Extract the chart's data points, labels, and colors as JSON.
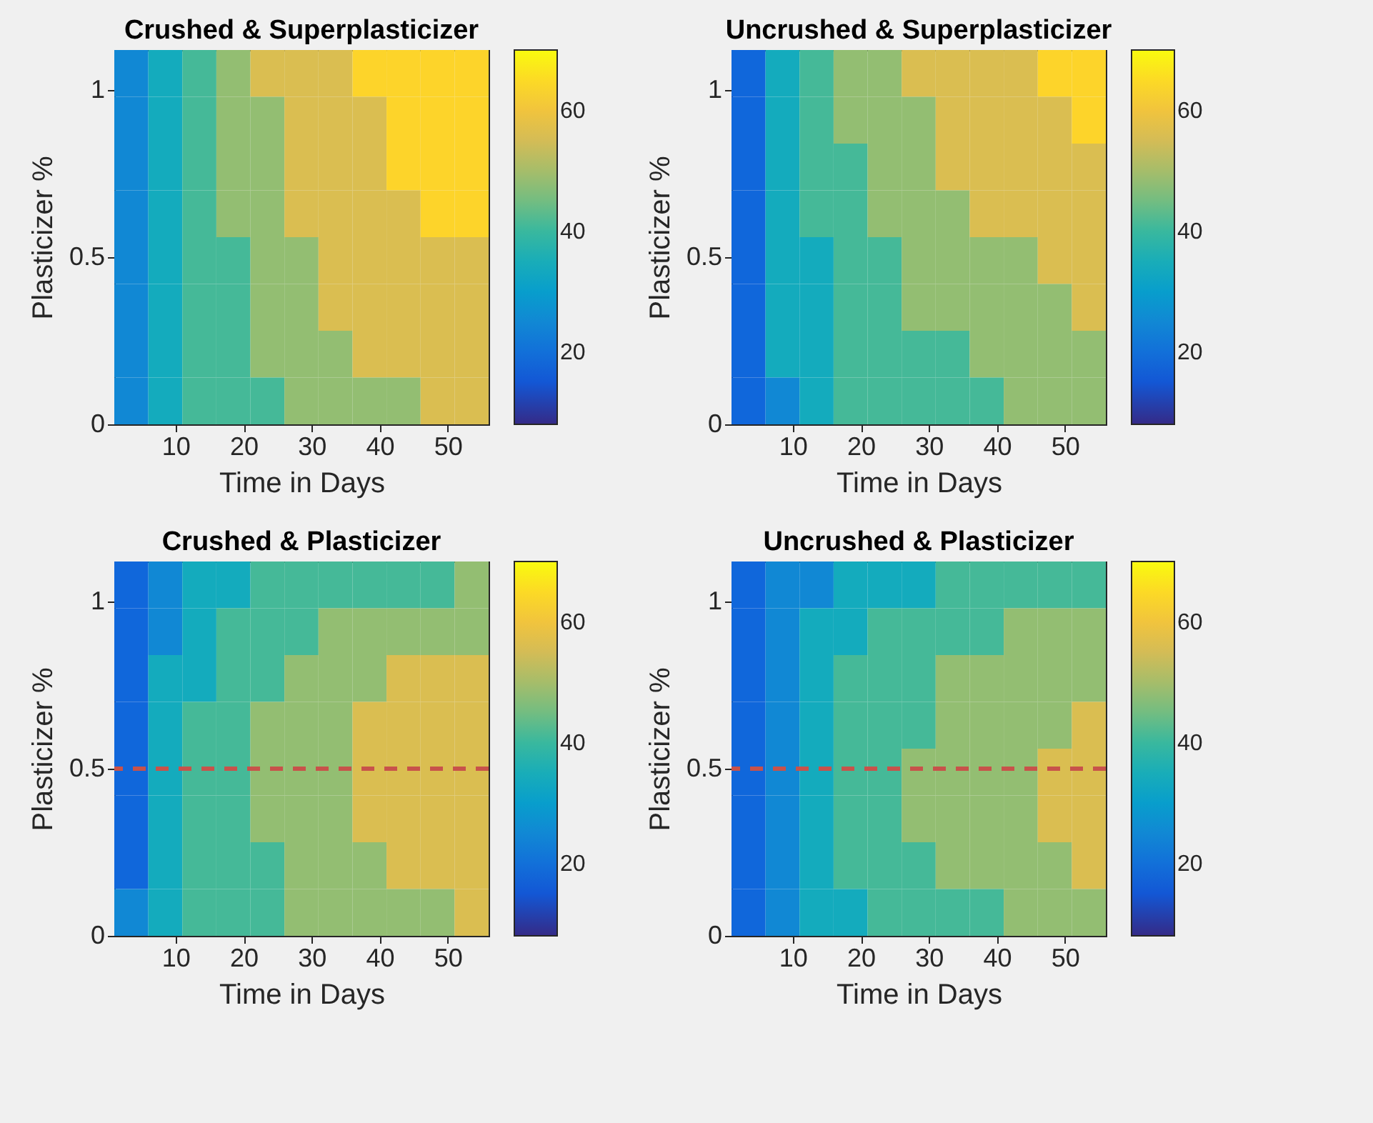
{
  "chart_data": [
    {
      "type": "heatmap",
      "title": "Crushed & Superplasticizer",
      "xlabel": "Time in Days",
      "ylabel": "Plasticizer %",
      "x": [
        3.5,
        8.5,
        13.5,
        18.5,
        23.5,
        28.5,
        33.5,
        38.5,
        43.5,
        48.5,
        53.5
      ],
      "xlim": [
        1,
        56
      ],
      "xticks": [
        10,
        20,
        30,
        40,
        50
      ],
      "ylim": [
        0,
        1.12
      ],
      "yticks": [
        0,
        0.5,
        1
      ],
      "clim": [
        8,
        70
      ],
      "cticks": [
        20,
        40,
        60
      ],
      "cells": [
        [
          25,
          34,
          41,
          48,
          56,
          56,
          56,
          64,
          64,
          64,
          64
        ],
        [
          25,
          34,
          41,
          48,
          48,
          56,
          56,
          56,
          64,
          64,
          64
        ],
        [
          25,
          34,
          41,
          48,
          48,
          56,
          56,
          56,
          64,
          64,
          64
        ],
        [
          25,
          34,
          41,
          48,
          48,
          56,
          56,
          56,
          56,
          64,
          64
        ],
        [
          25,
          34,
          41,
          41,
          48,
          48,
          56,
          56,
          56,
          56,
          56
        ],
        [
          25,
          34,
          41,
          41,
          48,
          48,
          56,
          56,
          56,
          56,
          56
        ],
        [
          25,
          34,
          41,
          41,
          48,
          48,
          48,
          56,
          56,
          56,
          56
        ],
        [
          25,
          34,
          41,
          41,
          41,
          48,
          48,
          48,
          48,
          56,
          56
        ]
      ]
    },
    {
      "type": "heatmap",
      "title": "Uncrushed & Superplasticizer",
      "xlabel": "Time in Days",
      "ylabel": "Plasticizer %",
      "x": [
        3.5,
        8.5,
        13.5,
        18.5,
        23.5,
        28.5,
        33.5,
        38.5,
        43.5,
        48.5,
        53.5
      ],
      "xlim": [
        1,
        56
      ],
      "xticks": [
        10,
        20,
        30,
        40,
        50
      ],
      "ylim": [
        0,
        1.12
      ],
      "yticks": [
        0,
        0.5,
        1
      ],
      "clim": [
        8,
        70
      ],
      "cticks": [
        20,
        40,
        60
      ],
      "cells": [
        [
          18,
          34,
          41,
          48,
          48,
          56,
          56,
          56,
          56,
          64,
          64
        ],
        [
          18,
          34,
          41,
          48,
          48,
          48,
          56,
          56,
          56,
          56,
          64
        ],
        [
          18,
          34,
          41,
          41,
          48,
          48,
          56,
          56,
          56,
          56,
          56
        ],
        [
          18,
          34,
          41,
          41,
          48,
          48,
          48,
          56,
          56,
          56,
          56
        ],
        [
          18,
          34,
          34,
          41,
          41,
          48,
          48,
          48,
          48,
          56,
          56
        ],
        [
          18,
          34,
          34,
          41,
          41,
          48,
          48,
          48,
          48,
          48,
          56
        ],
        [
          18,
          34,
          34,
          41,
          41,
          41,
          41,
          48,
          48,
          48,
          48
        ],
        [
          18,
          25,
          34,
          41,
          41,
          41,
          41,
          41,
          48,
          48,
          48
        ]
      ]
    },
    {
      "type": "heatmap",
      "title": "Crushed & Plasticizer",
      "xlabel": "Time in Days",
      "ylabel": "Plasticizer %",
      "x": [
        3.5,
        8.5,
        13.5,
        18.5,
        23.5,
        28.5,
        33.5,
        38.5,
        43.5,
        48.5,
        53.5
      ],
      "xlim": [
        1,
        56
      ],
      "xticks": [
        10,
        20,
        30,
        40,
        50
      ],
      "ylim": [
        0,
        1.12
      ],
      "yticks": [
        0,
        0.5,
        1
      ],
      "clim": [
        8,
        70
      ],
      "cticks": [
        20,
        40,
        60
      ],
      "ref_lines": [
        {
          "axis": "y",
          "value": 0.5,
          "color": "#c8524a",
          "line_style": "dashed"
        }
      ],
      "cells": [
        [
          18,
          25,
          34,
          34,
          41,
          41,
          41,
          41,
          41,
          41,
          48
        ],
        [
          18,
          25,
          34,
          41,
          41,
          41,
          48,
          48,
          48,
          48,
          48
        ],
        [
          18,
          34,
          34,
          41,
          41,
          48,
          48,
          48,
          56,
          56,
          56
        ],
        [
          18,
          34,
          41,
          41,
          48,
          48,
          48,
          56,
          56,
          56,
          56
        ],
        [
          18,
          34,
          41,
          41,
          48,
          48,
          48,
          56,
          56,
          56,
          56
        ],
        [
          18,
          34,
          41,
          41,
          48,
          48,
          48,
          56,
          56,
          56,
          56
        ],
        [
          18,
          34,
          41,
          41,
          41,
          48,
          48,
          48,
          56,
          56,
          56
        ],
        [
          25,
          34,
          41,
          41,
          41,
          48,
          48,
          48,
          48,
          48,
          56
        ]
      ]
    },
    {
      "type": "heatmap",
      "title": "Uncrushed & Plasticizer",
      "xlabel": "Time in Days",
      "ylabel": "Plasticizer %",
      "x": [
        3.5,
        8.5,
        13.5,
        18.5,
        23.5,
        28.5,
        33.5,
        38.5,
        43.5,
        48.5,
        53.5
      ],
      "xlim": [
        1,
        56
      ],
      "xticks": [
        10,
        20,
        30,
        40,
        50
      ],
      "ylim": [
        0,
        1.12
      ],
      "yticks": [
        0,
        0.5,
        1
      ],
      "clim": [
        8,
        70
      ],
      "cticks": [
        20,
        40,
        60
      ],
      "ref_lines": [
        {
          "axis": "y",
          "value": 0.5,
          "color": "#c8524a",
          "line_style": "dashed"
        }
      ],
      "cells": [
        [
          18,
          25,
          25,
          34,
          34,
          34,
          41,
          41,
          41,
          41,
          41
        ],
        [
          18,
          25,
          34,
          34,
          41,
          41,
          41,
          41,
          48,
          48,
          48
        ],
        [
          18,
          25,
          34,
          41,
          41,
          41,
          48,
          48,
          48,
          48,
          48
        ],
        [
          18,
          25,
          34,
          41,
          41,
          41,
          48,
          48,
          48,
          48,
          56
        ],
        [
          18,
          25,
          34,
          41,
          41,
          48,
          48,
          48,
          48,
          56,
          56
        ],
        [
          18,
          25,
          34,
          41,
          41,
          48,
          48,
          48,
          48,
          56,
          56
        ],
        [
          18,
          25,
          34,
          41,
          41,
          41,
          48,
          48,
          48,
          48,
          56
        ],
        [
          18,
          25,
          34,
          34,
          41,
          41,
          41,
          41,
          48,
          48,
          48
        ]
      ]
    }
  ]
}
